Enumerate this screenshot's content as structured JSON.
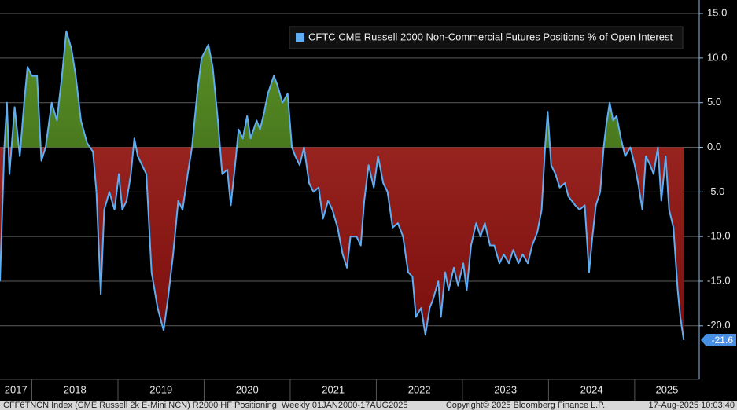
{
  "chart_data": {
    "type": "area",
    "series": [
      {
        "name": "CFTC CME Russell 2000 Non-Commercial Futures Positions % of Open Interest",
        "color": "#5eaef5",
        "x": [
          2017.63,
          2017.68,
          2017.71,
          2017.74,
          2017.8,
          2017.86,
          2017.91,
          2017.95,
          2018.0,
          2018.06,
          2018.11,
          2018.16,
          2018.23,
          2018.29,
          2018.35,
          2018.4,
          2018.46,
          2018.51,
          2018.57,
          2018.64,
          2018.71,
          2018.75,
          2018.8,
          2018.84,
          2018.9,
          2018.96,
          2019.01,
          2019.05,
          2019.1,
          2019.15,
          2019.19,
          2019.23,
          2019.28,
          2019.33,
          2019.39,
          2019.46,
          2019.53,
          2019.58,
          2019.64,
          2019.7,
          2019.75,
          2019.81,
          2019.86,
          2019.92,
          2019.97,
          2020.05,
          2020.1,
          2020.16,
          2020.21,
          2020.27,
          2020.31,
          2020.36,
          2020.4,
          2020.45,
          2020.5,
          2020.54,
          2020.61,
          2020.65,
          2020.7,
          2020.74,
          2020.81,
          2020.85,
          2020.91,
          2020.97,
          2021.02,
          2021.06,
          2021.11,
          2021.16,
          2021.22,
          2021.27,
          2021.33,
          2021.38,
          2021.44,
          2021.49,
          2021.55,
          2021.61,
          2021.66,
          2021.7,
          2021.77,
          2021.82,
          2021.86,
          2021.91,
          2021.97,
          2022.02,
          2022.08,
          2022.13,
          2022.19,
          2022.25,
          2022.31,
          2022.37,
          2022.42,
          2022.46,
          2022.52,
          2022.57,
          2022.62,
          2022.66,
          2022.72,
          2022.75,
          2022.8,
          2022.84,
          2022.9,
          2022.95,
          2023.01,
          2023.05,
          2023.1,
          2023.16,
          2023.21,
          2023.26,
          2023.32,
          2023.37,
          2023.43,
          2023.48,
          2023.54,
          2023.59,
          2023.65,
          2023.7,
          2023.76,
          2023.81,
          2023.87,
          2023.92,
          2023.96,
          2023.99,
          2024.03,
          2024.08,
          2024.13,
          2024.19,
          2024.23,
          2024.31,
          2024.36,
          2024.42,
          2024.47,
          2024.51,
          2024.55,
          2024.6,
          2024.64,
          2024.67,
          2024.71,
          2024.75,
          2024.79,
          2024.84,
          2024.89,
          2024.95,
          2025.0,
          2025.04,
          2025.09,
          2025.13,
          2025.18,
          2025.22,
          2025.27,
          2025.31,
          2025.36,
          2025.4,
          2025.45,
          2025.5,
          2025.53,
          2025.57
        ],
        "values": [
          -15,
          0,
          5,
          -3,
          4.5,
          -1,
          5,
          9,
          8,
          8,
          -1.5,
          0,
          5,
          3,
          8,
          13,
          11,
          8,
          3,
          0.5,
          -0.5,
          -5,
          -16.5,
          -7,
          -5,
          -7,
          -3,
          -7,
          -6,
          -3,
          1,
          -1,
          -2,
          -3,
          -14,
          -18,
          -20.5,
          -17,
          -12,
          -6,
          -7,
          -3,
          0,
          6,
          10,
          11.5,
          9,
          3,
          -3,
          -2.5,
          -6.5,
          -2,
          2,
          1,
          3.5,
          1,
          3,
          2,
          4,
          6,
          8,
          7,
          5,
          6,
          0,
          -1,
          -2,
          0,
          -4,
          -5,
          -4.5,
          -8,
          -6,
          -7,
          -9,
          -12,
          -13.5,
          -10,
          -10,
          -11,
          -6,
          -2,
          -4.5,
          -1,
          -4,
          -5,
          -9,
          -8.5,
          -10,
          -14,
          -14.5,
          -19,
          -18,
          -21,
          -18,
          -17,
          -15,
          -19,
          -14,
          -16,
          -13.5,
          -15.5,
          -13,
          -16,
          -11,
          -8.5,
          -10,
          -8.5,
          -11,
          -11,
          -13,
          -12,
          -13,
          -11.5,
          -13,
          -12,
          -13,
          -11,
          -9.5,
          -7,
          0,
          4,
          -2,
          -3,
          -4.5,
          -4,
          -5.5,
          -6.5,
          -7,
          -6.5,
          -14,
          -10,
          -6.5,
          -5,
          0,
          2.5,
          5,
          3,
          3.5,
          1,
          -1,
          0,
          -2,
          -4,
          -7,
          -1,
          -2,
          -3,
          0,
          -6,
          -1,
          -7,
          -9,
          -16,
          -19,
          -21.6
        ]
      }
    ],
    "positive_color": "#5a8f26",
    "negative_color": "#a8302a",
    "xlim": [
      2017.63,
      2025.75
    ],
    "xticks": [
      {
        "value": 2017,
        "label": "2017"
      },
      {
        "value": 2018,
        "label": "2018"
      },
      {
        "value": 2019,
        "label": "2019"
      },
      {
        "value": 2020,
        "label": "2020"
      },
      {
        "value": 2021,
        "label": "2021"
      },
      {
        "value": 2022,
        "label": "2022"
      },
      {
        "value": 2023,
        "label": "2023"
      },
      {
        "value": 2024,
        "label": "2024"
      },
      {
        "value": 2025,
        "label": "2025"
      }
    ],
    "ylim": [
      -26,
      16.5
    ],
    "yticks": [
      {
        "value": 15,
        "label": "15.0"
      },
      {
        "value": 10,
        "label": "10.0"
      },
      {
        "value": 5,
        "label": "5.0"
      },
      {
        "value": 0,
        "label": "0.0"
      },
      {
        "value": -5,
        "label": "-5.0"
      },
      {
        "value": -10,
        "label": "-10.0"
      },
      {
        "value": -15,
        "label": "-15.0"
      },
      {
        "value": -20,
        "label": "-20.0"
      }
    ],
    "grid": true,
    "legend": "top-right",
    "footer": {
      "left": "CFF6TNCN Index (CME Russell 2k E-Mini NCN) R2000 HF Positioning  Weekly 01JAN2000-17AUG2025",
      "center": "Copyright© 2025 Bloomberg Finance L.P.",
      "right": "17-Aug-2025 10:03:40"
    }
  }
}
